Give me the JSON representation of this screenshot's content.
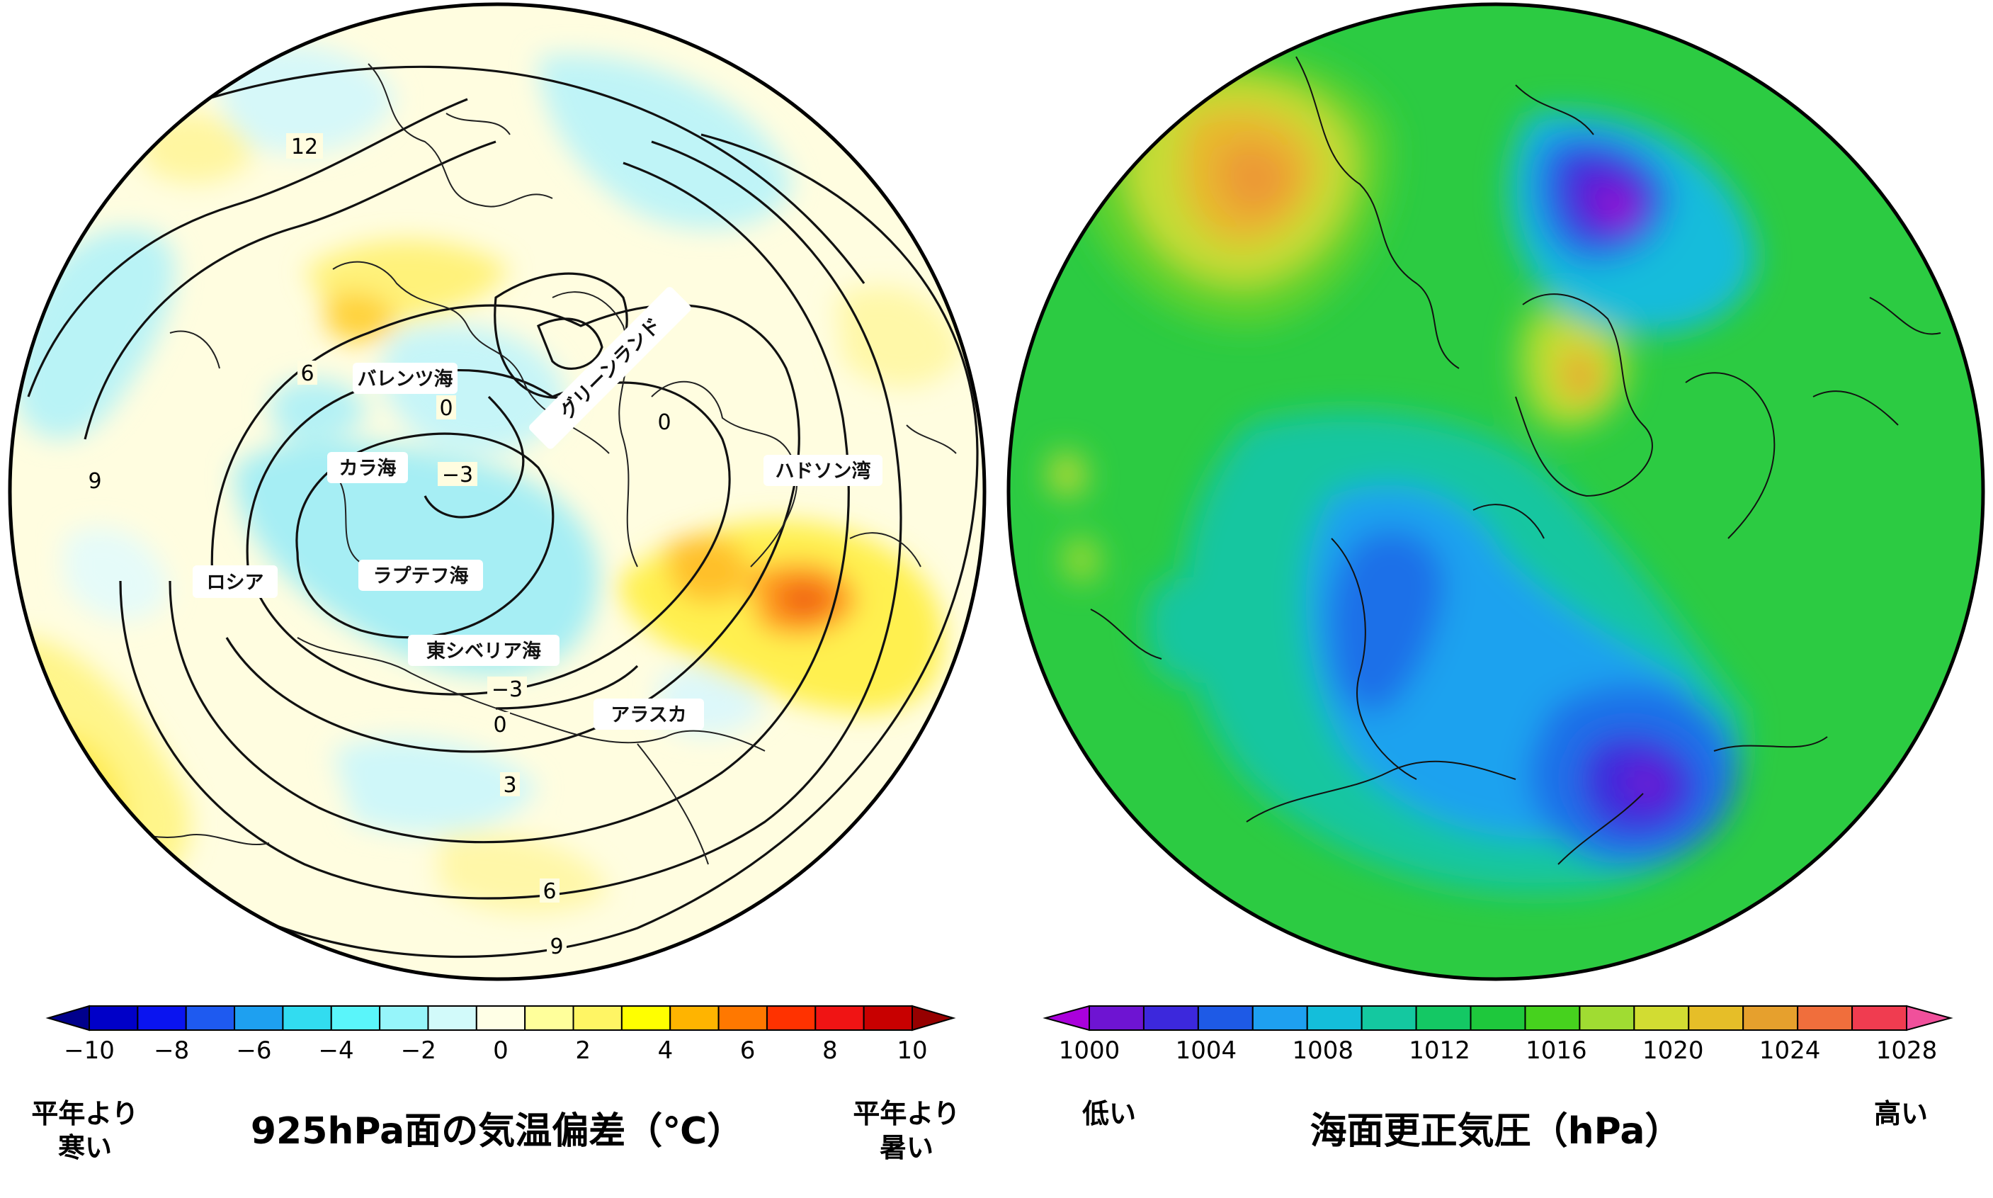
{
  "left_map": {
    "title": "925hPa面の気温偏差（℃）",
    "low_label_line1": "平年より",
    "low_label_line2": "寒い",
    "high_label_line1": "平年より",
    "high_label_line2": "暑い",
    "regions": {
      "barents": "バレンツ海",
      "greenland": "グリーンランド",
      "kara": "カラ海",
      "hudson": "ハドソン湾",
      "russia": "ロシア",
      "laptev": "ラプテフ海",
      "east_siberia": "東シベリア海",
      "alaska": "アラスカ"
    },
    "contour_labels": {
      "c12": "12",
      "c6_top": "6",
      "c0_top": "0",
      "c0_green": "0",
      "c9_left": "9",
      "cm3_top": "−3",
      "cm3_bottom": "−3",
      "c0_bottom": "0",
      "c3_bottom": "3",
      "c6_bottom": "6",
      "c9_bottom": "9"
    },
    "colorbar": {
      "ticks": [
        "−10",
        "−8",
        "−6",
        "−4",
        "−2",
        "0",
        "2",
        "4",
        "6",
        "8",
        "10"
      ],
      "colors": [
        "#00008c",
        "#0000c8",
        "#0a14f0",
        "#1e5af0",
        "#1ea0f0",
        "#32dcf0",
        "#5af5fa",
        "#96f5fa",
        "#d2fafa",
        "#ffffe6",
        "#ffff9b",
        "#fff564",
        "#ffff00",
        "#ffb400",
        "#ff7800",
        "#ff3200",
        "#f01414",
        "#c80000",
        "#960000"
      ]
    }
  },
  "right_map": {
    "title": "海面更正気圧（hPa）",
    "low_label": "低い",
    "high_label": "高い",
    "colorbar": {
      "ticks": [
        "1000",
        "1004",
        "1008",
        "1012",
        "1016",
        "1020",
        "1024",
        "1028"
      ],
      "colors": [
        "#aa00dc",
        "#6e14d2",
        "#3c28dc",
        "#1e5ae6",
        "#1ea0f0",
        "#14beda",
        "#14c8a0",
        "#14c864",
        "#1ec83c",
        "#46d21e",
        "#a0dc32",
        "#d2dc32",
        "#e6be28",
        "#e6a02d",
        "#f06e3c",
        "#f03c50",
        "#f0509b"
      ]
    }
  },
  "colors": {
    "left_bg": "#fffde0",
    "right_bg": "#2ccb42"
  }
}
